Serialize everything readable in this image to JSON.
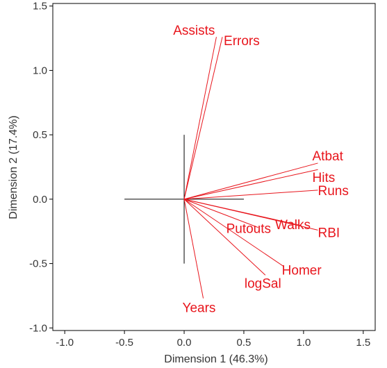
{
  "chart_data": {
    "type": "scatter",
    "subtype": "biplot-vectors",
    "title": "",
    "xlabel": "Dimension 1 (46.3%)",
    "ylabel": "Dimension 2 (17.4%)",
    "xlim": [
      -1.1,
      1.6
    ],
    "ylim": [
      -1.02,
      1.52
    ],
    "xticks": [
      "-1.0",
      "-0.5",
      "0.0",
      "0.5",
      "1.0",
      "1.5"
    ],
    "xtick_values": [
      -1.0,
      -0.5,
      0.0,
      0.5,
      1.0,
      1.5
    ],
    "yticks": [
      "1.5",
      "1.0",
      "0.5",
      "0.0",
      "-0.5",
      "-1.0"
    ],
    "ytick_values": [
      1.5,
      1.0,
      0.5,
      0.0,
      -0.5,
      -1.0
    ],
    "grid": false,
    "crosshair": {
      "x_range": [
        -0.5,
        0.5
      ],
      "y_range": [
        -0.5,
        0.5
      ]
    },
    "vector_color": "#e8151c",
    "axis_color": "#000000",
    "vectors": [
      {
        "name": "Assists",
        "x": 0.27,
        "y": 1.26
      },
      {
        "name": "Errors",
        "x": 0.32,
        "y": 1.26
      },
      {
        "name": "Atbat",
        "x": 1.12,
        "y": 0.28
      },
      {
        "name": "Hits",
        "x": 1.12,
        "y": 0.23
      },
      {
        "name": "Runs",
        "x": 1.12,
        "y": 0.07
      },
      {
        "name": "Walks",
        "x": 0.96,
        "y": -0.2
      },
      {
        "name": "RBI",
        "x": 1.12,
        "y": -0.24
      },
      {
        "name": "Putouts",
        "x": 0.62,
        "y": -0.22
      },
      {
        "name": "Homer",
        "x": 0.83,
        "y": -0.52
      },
      {
        "name": "logSal",
        "x": 0.68,
        "y": -0.59
      },
      {
        "name": "Years",
        "x": 0.16,
        "y": -0.77
      }
    ]
  }
}
